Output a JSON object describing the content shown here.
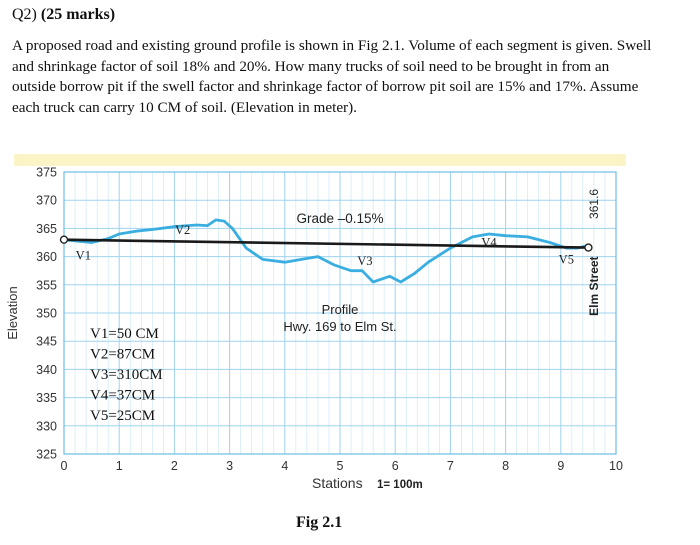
{
  "question": {
    "number": "Q2)",
    "marks": "(25 marks)",
    "body": "A proposed road and existing ground profile is shown in Fig 2.1. Volume of each segment is given. Swell and shrinkage factor of soil 18% and 20%. How many trucks of soil need to be brought in from an outside borrow pit if the swell factor and shrinkage factor of borrow pit soil are 15% and 17%. Assume each truck can carry 10 CM of soil. (Elevation in meter)."
  },
  "figure_caption": "Fig 2.1",
  "chart_data": {
    "type": "line",
    "xlabel": "Stations",
    "xlabel_note": "1= 100m",
    "ylabel": "Elevation",
    "xlim": [
      0,
      10
    ],
    "ylim": [
      325,
      375
    ],
    "x_ticks": [
      "0",
      "1",
      "2",
      "3",
      "4",
      "5",
      "6",
      "7",
      "8",
      "9",
      "10"
    ],
    "y_ticks": [
      "325",
      "330",
      "335",
      "340",
      "345",
      "350",
      "355",
      "360",
      "365",
      "370",
      "375"
    ],
    "grid": true,
    "series": [
      {
        "name": "",
        "role": "existing ground",
        "color": "#3aaee0",
        "x": [
          0,
          0.2,
          0.5,
          0.8,
          1.0,
          1.3,
          1.6,
          2.0,
          2.4,
          2.6,
          2.75,
          2.9,
          3.05,
          3.3,
          3.6,
          4.0,
          4.3,
          4.6,
          4.9,
          5.2,
          5.4,
          5.6,
          5.9,
          6.1,
          6.35,
          6.6,
          7.0,
          7.4,
          7.7,
          8.0,
          8.4,
          8.8,
          9.1,
          9.3,
          9.5
        ],
        "y": [
          363,
          362.8,
          362.5,
          363.2,
          364,
          364.5,
          364.8,
          365.3,
          365.6,
          365.5,
          366.5,
          366.3,
          365,
          361.5,
          359.5,
          359,
          359.5,
          360,
          358.5,
          357.5,
          357.5,
          355.5,
          356.5,
          355.5,
          357,
          359,
          361.5,
          363.5,
          364,
          363.7,
          363.5,
          362.5,
          361.5,
          361.5,
          362
        ]
      },
      {
        "name": "",
        "role": "proposed grade",
        "color": "#1a1a1a",
        "x": [
          0,
          9.5
        ],
        "y": [
          363,
          361.6
        ]
      }
    ],
    "annotations": {
      "grade": "Grade –0.15%",
      "profile_title": "Profile",
      "profile_subtitle": "Hwy. 169 to Elm St.",
      "elm_street": "Elm Street",
      "elm_elevation": "361.6",
      "segments": [
        {
          "label": "V1",
          "x": 0.35,
          "y": 359.5
        },
        {
          "label": "V2",
          "x": 2.15,
          "y": 364
        },
        {
          "label": "V3",
          "x": 5.45,
          "y": 358.5
        },
        {
          "label": "V4",
          "x": 7.7,
          "y": 361.8
        },
        {
          "label": "V5",
          "x": 9.1,
          "y": 358.8
        }
      ]
    },
    "volumes": [
      "V1=50 CM",
      "V2=87CM",
      "V3=310CM",
      "V4=37CM",
      "V5=25CM"
    ]
  }
}
